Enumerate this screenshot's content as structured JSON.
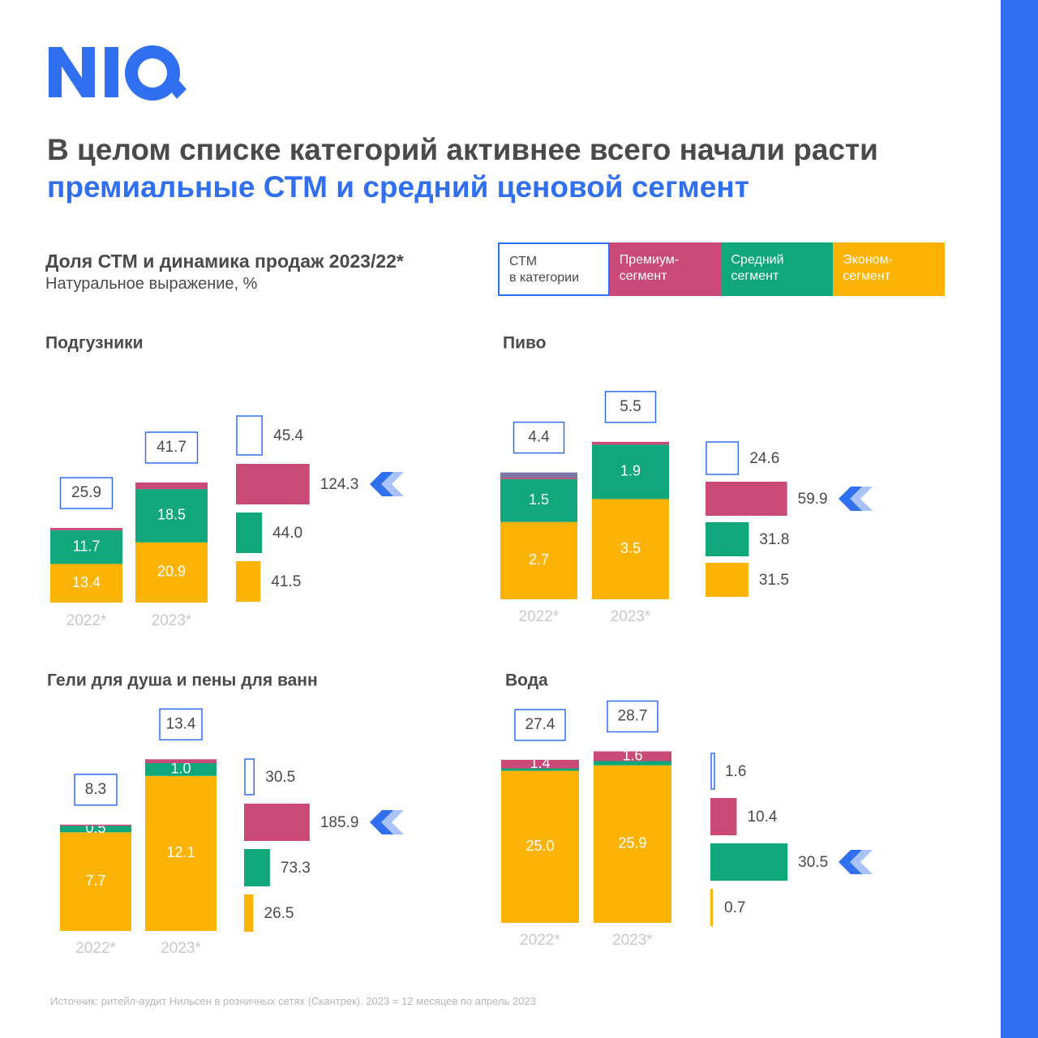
{
  "header": {
    "title_part1": "В целом списке категорий активнее всего начали расти ",
    "title_part2": "премиальные СТМ и средний ценовой сегмент",
    "subtitle": "Доля СТМ и динамика продаж 2023/22*",
    "subnote": "Натуральное выражение, %"
  },
  "legend": {
    "ctm": "СТМ\nв категории",
    "premium": "Премиум-\nсегмент",
    "middle": "Средний\nсегмент",
    "economy": "Эконом-\nсегмент"
  },
  "colors": {
    "ctm": "#2f6ff0",
    "premium": "#c94a76",
    "middle": "#10a77b",
    "economy": "#fdb303",
    "beer_extra": "#7b77a7",
    "accent_bar": "#2f6ff0"
  },
  "source": "Источник: ритейл-аудит Нильсен в розничных сетях (Скантрек). 2023 = 12 месяцев по апрель 2023",
  "chart_data": [
    {
      "type": "bar",
      "title": "Подгузники",
      "categories": [
        "2022*",
        "2023*"
      ],
      "ctm_share": [
        25.9,
        41.7
      ],
      "stack_series": [
        {
          "name": "Эконом-сегмент",
          "values": [
            13.4,
            20.9
          ],
          "labels": [
            "13.4",
            "20.9"
          ]
        },
        {
          "name": "Средний сегмент",
          "values": [
            11.7,
            18.5
          ],
          "labels": [
            "11.7",
            "18.5"
          ]
        },
        {
          "name": "Премиум-сегмент",
          "values": [
            0.8,
            2.3
          ],
          "labels": [
            "",
            ""
          ]
        }
      ],
      "growth": {
        "ctm": 45.4,
        "premium": 124.3,
        "middle": 44.0,
        "economy": 41.5
      },
      "growth_labels": {
        "ctm": "45.4",
        "premium": "124.3",
        "middle": "44.0",
        "economy": "41.5"
      },
      "highlight": "premium"
    },
    {
      "type": "bar",
      "title": "Пиво",
      "categories": [
        "2022*",
        "2023*"
      ],
      "ctm_share": [
        4.4,
        5.5
      ],
      "stack_series": [
        {
          "name": "Эконом-сегмент",
          "values": [
            2.7,
            3.5
          ],
          "labels": [
            "2.7",
            "3.5"
          ]
        },
        {
          "name": "Средний сегмент",
          "values": [
            1.5,
            1.9
          ],
          "labels": [
            "1.5",
            "1.9"
          ]
        },
        {
          "name": "Премиум-сегмент",
          "values": [
            0.05,
            0.1
          ],
          "labels": [
            "",
            ""
          ]
        },
        {
          "name": "",
          "values": [
            0.18,
            0
          ],
          "labels": [
            "",
            ""
          ]
        }
      ],
      "growth": {
        "ctm": 24.6,
        "premium": 59.9,
        "middle": 31.8,
        "economy": 31.5
      },
      "growth_labels": {
        "ctm": "24.6",
        "premium": "59.9",
        "middle": "31.8",
        "economy": "31.5"
      },
      "highlight": "premium"
    },
    {
      "type": "bar",
      "title": "Гели для душа и пены для ванн",
      "categories": [
        "2022*",
        "2023*"
      ],
      "ctm_share": [
        8.3,
        13.4
      ],
      "stack_series": [
        {
          "name": "Эконом-сегмент",
          "values": [
            7.7,
            12.1
          ],
          "labels": [
            "7.7",
            "12.1"
          ]
        },
        {
          "name": "Средний сегмент",
          "values": [
            0.5,
            1.0
          ],
          "labels": [
            "0.5",
            "1.0"
          ]
        },
        {
          "name": "Премиум-сегмент",
          "values": [
            0.1,
            0.3
          ],
          "labels": [
            "",
            ""
          ]
        }
      ],
      "growth": {
        "ctm": 30.5,
        "premium": 185.9,
        "middle": 73.3,
        "economy": 26.5
      },
      "growth_labels": {
        "ctm": "30.5",
        "premium": "185.9",
        "middle": "73.3",
        "economy": "26.5"
      },
      "highlight": "premium"
    },
    {
      "type": "bar",
      "title": "Вода",
      "categories": [
        "2022*",
        "2023*"
      ],
      "ctm_share": [
        27.4,
        28.7
      ],
      "stack_series": [
        {
          "name": "Эконом-сегмент",
          "values": [
            25.0,
            25.9
          ],
          "labels": [
            "25.0",
            "25.9"
          ]
        },
        {
          "name": "Средний сегмент",
          "values": [
            0.4,
            0.7
          ],
          "labels": [
            "",
            ""
          ]
        },
        {
          "name": "Премиум-сегмент",
          "values": [
            1.4,
            1.6
          ],
          "labels": [
            "1.4",
            "1.6"
          ]
        }
      ],
      "growth": {
        "ctm": 1.6,
        "premium": 10.4,
        "middle": 30.5,
        "economy": 0.7
      },
      "growth_labels": {
        "ctm": "1.6",
        "premium": "10.4",
        "middle": "30.5",
        "economy": "0.7"
      },
      "highlight": "middle"
    }
  ]
}
